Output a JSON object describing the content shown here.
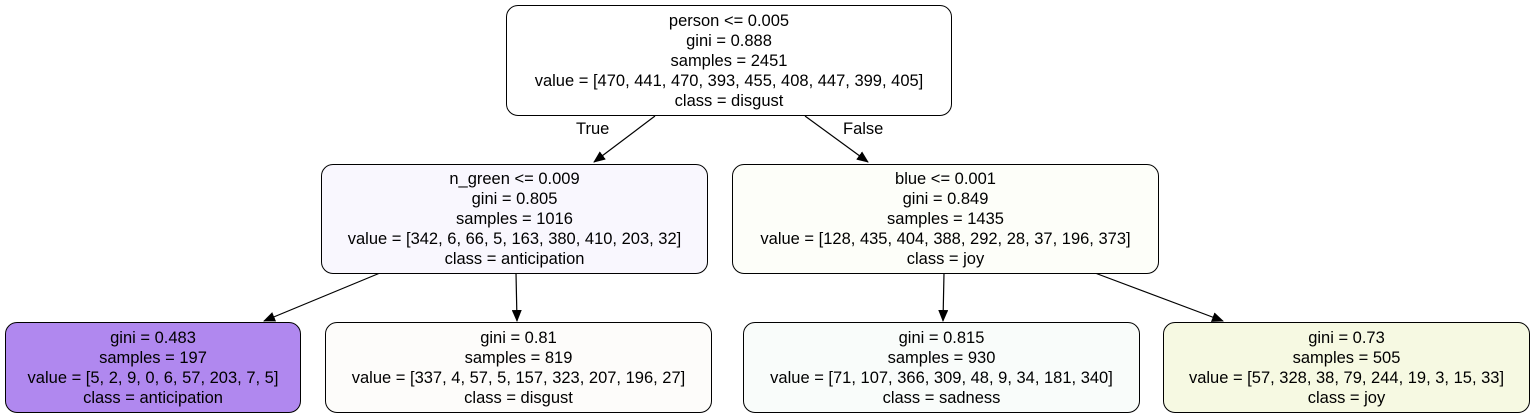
{
  "nodes": {
    "root": {
      "lines": [
        "person <= 0.005",
        "gini = 0.888",
        "samples = 2451",
        "value = [470, 441, 470, 393, 455, 408, 447, 399, 405]",
        "class = disgust"
      ],
      "fill": "#ffffff"
    },
    "left": {
      "lines": [
        "n_green <= 0.009",
        "gini = 0.805",
        "samples = 1016",
        "value = [342, 6, 66, 5, 163, 380, 410, 203, 32]",
        "class = anticipation"
      ],
      "fill": "#f9f7fe"
    },
    "right": {
      "lines": [
        "blue <= 0.001",
        "gini = 0.849",
        "samples = 1435",
        "value = [128, 435, 404, 388, 292, 28, 37, 196, 373]",
        "class = joy"
      ],
      "fill": "#fdfef9"
    },
    "leaf1": {
      "lines": [
        "gini = 0.483",
        "samples = 197",
        "value = [5, 2, 9, 0, 6, 57, 203, 7, 5]",
        "class = anticipation"
      ],
      "fill": "#b088ef"
    },
    "leaf2": {
      "lines": [
        "gini = 0.81",
        "samples = 819",
        "value = [337, 4, 57, 5, 157, 323, 207, 196, 27]",
        "class = disgust"
      ],
      "fill": "#fdfcfa"
    },
    "leaf3": {
      "lines": [
        "gini = 0.815",
        "samples = 930",
        "value = [71, 107, 366, 309, 48, 9, 34, 181, 340]",
        "class = sadness"
      ],
      "fill": "#f9fcfa"
    },
    "leaf4": {
      "lines": [
        "gini = 0.73",
        "samples = 505",
        "value = [57, 328, 38, 79, 244, 19, 3, 15, 33]",
        "class = joy"
      ],
      "fill": "#f6f9e2"
    }
  },
  "edge_labels": {
    "true_label": "True",
    "false_label": "False"
  },
  "colors": {
    "stroke": "#000000"
  }
}
